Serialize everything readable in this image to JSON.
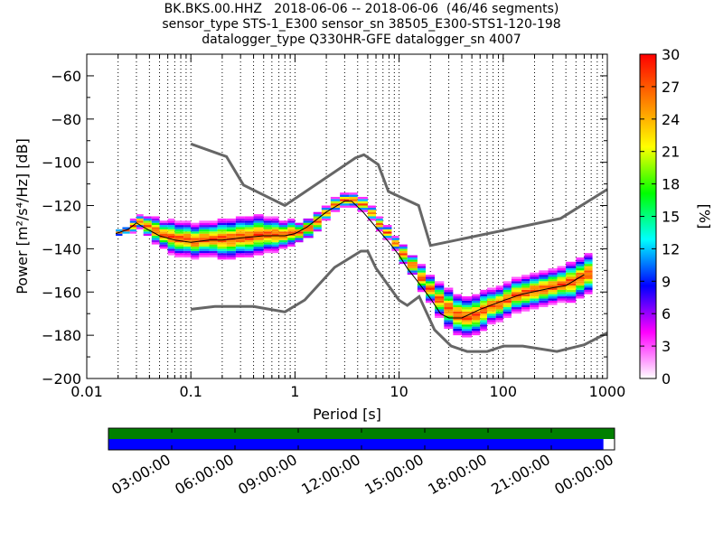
{
  "title_lines": [
    "BK.BKS.00.HHZ   2018-06-06 -- 2018-06-06  (46/46 segments)",
    "sensor_type STS-1_E300 sensor_sn 38505_E300-STS1-120-198",
    "datalogger_type Q330HR-GFE datalogger_sn 4007"
  ],
  "chart_data": {
    "type": "heatmap",
    "xlabel": "Period [s]",
    "ylabel": "Power [m²/s⁴/Hz] [dB]",
    "xscale": "log",
    "xlim": [
      0.01,
      1000
    ],
    "ylim": [
      -200,
      -50
    ],
    "xticks": [
      0.01,
      0.1,
      1,
      10,
      100,
      1000
    ],
    "xtick_labels": [
      "0.01",
      "0.1",
      "1",
      "10",
      "100",
      "1000"
    ],
    "yticks": [
      -200,
      -180,
      -160,
      -140,
      -120,
      -100,
      -80,
      -60
    ],
    "ytick_labels": [
      "−200",
      "−180",
      "−160",
      "−140",
      "−120",
      "−100",
      "−80",
      "−60"
    ],
    "grid": "dotted, vertical only",
    "colorbar": {
      "label": "[%]",
      "range": [
        0,
        30
      ],
      "ticks": [
        0,
        3,
        6,
        9,
        12,
        15,
        18,
        21,
        24,
        27,
        30
      ],
      "colormap": [
        "#ffffff",
        "#ff00ff",
        "#0000ff",
        "#00ffff",
        "#00ff00",
        "#ffff00",
        "#ff7f00",
        "#ff0000"
      ]
    },
    "mode_line": {
      "color": "#000000",
      "x": [
        0.019,
        0.025,
        0.03,
        0.035,
        0.05,
        0.07,
        0.1,
        0.15,
        0.2,
        0.3,
        0.5,
        0.8,
        1.0,
        1.3,
        2.0,
        3.0,
        3.5,
        4.5,
        6.0,
        8.0,
        10,
        12,
        15,
        20,
        25,
        30,
        40,
        60,
        100,
        150,
        300,
        400,
        600
      ],
      "y": [
        -133,
        -131,
        -128,
        -130,
        -134,
        -136,
        -137,
        -136,
        -136,
        -135,
        -134,
        -134,
        -133,
        -130,
        -123,
        -118,
        -118,
        -123,
        -130,
        -137,
        -143,
        -149,
        -155,
        -163,
        -170,
        -172,
        -172,
        -168,
        -164,
        -161,
        -158,
        -157,
        -152
      ]
    },
    "series": [
      {
        "name": "NHNM",
        "color": "#666666",
        "x": [
          0.1,
          0.22,
          0.32,
          0.8,
          3.8,
          4.6,
          6.3,
          7.9,
          15.4,
          20,
          354.8,
          1000
        ],
        "y": [
          -91.5,
          -97.4,
          -110.5,
          -120,
          -98,
          -96.5,
          -101,
          -113.5,
          -120,
          -138.5,
          -126,
          -112.5
        ]
      },
      {
        "name": "NLNM",
        "color": "#666666",
        "x": [
          0.1,
          0.17,
          0.4,
          0.8,
          1.24,
          2.4,
          4.3,
          5.0,
          6.0,
          10,
          12,
          15.6,
          21.9,
          31.6,
          45,
          70,
          101,
          154,
          328,
          600,
          1000
        ],
        "y": [
          -168,
          -166.7,
          -166.7,
          -169.2,
          -163.7,
          -148.6,
          -141.1,
          -141.1,
          -149,
          -163.8,
          -166.2,
          -162.1,
          -177.5,
          -185,
          -187.5,
          -187.5,
          -185,
          -185,
          -187.5,
          -184.4,
          -178.9
        ]
      }
    ],
    "density": {
      "x": [
        0.019,
        0.022,
        0.026,
        0.03,
        0.035,
        0.042,
        0.05,
        0.06,
        0.07,
        0.085,
        0.1,
        0.12,
        0.15,
        0.18,
        0.22,
        0.27,
        0.33,
        0.4,
        0.5,
        0.6,
        0.7,
        0.85,
        1.0,
        1.2,
        1.5,
        1.8,
        2.2,
        2.7,
        3.3,
        4.0,
        5.0,
        6.0,
        7.0,
        8.5,
        10,
        12,
        15,
        18,
        22,
        27,
        33,
        40,
        50,
        60,
        70,
        85,
        100,
        120,
        150,
        180,
        220,
        270,
        330,
        400,
        500,
        600
      ],
      "y_center": [
        -133,
        -132,
        -130,
        -128,
        -130,
        -132,
        -134,
        -135,
        -136,
        -136,
        -137,
        -136,
        -136,
        -136,
        -136,
        -135,
        -135,
        -134,
        -134,
        -134,
        -134,
        -133,
        -133,
        -131,
        -128,
        -124,
        -120,
        -118,
        -118,
        -120,
        -124,
        -129,
        -133,
        -138,
        -143,
        -148,
        -154,
        -159,
        -164,
        -168,
        -171,
        -172,
        -171,
        -169,
        -167,
        -166,
        -164,
        -162,
        -161,
        -160,
        -159,
        -158,
        -157,
        -156,
        -154,
        -152
      ],
      "spread": [
        1,
        1,
        2,
        2,
        3,
        4,
        4,
        5,
        5,
        5,
        5,
        5,
        5,
        6,
        6,
        6,
        6,
        6,
        5,
        5,
        4,
        4,
        3,
        3,
        3,
        2,
        2,
        2,
        2,
        2,
        2,
        2,
        2,
        2,
        3,
        3,
        4,
        4,
        5,
        6,
        6,
        6,
        6,
        6,
        5,
        5,
        5,
        5,
        5,
        5,
        5,
        5,
        5,
        6,
        6,
        6
      ]
    },
    "availability": {
      "time_labels": [
        "03:00:00",
        "06:00:00",
        "09:00:00",
        "12:00:00",
        "15:00:00",
        "18:00:00",
        "21:00:00",
        "00:00:00"
      ],
      "data_fraction": 0.978,
      "top_color": "#008000",
      "bottom_color": "#0000ff"
    }
  }
}
